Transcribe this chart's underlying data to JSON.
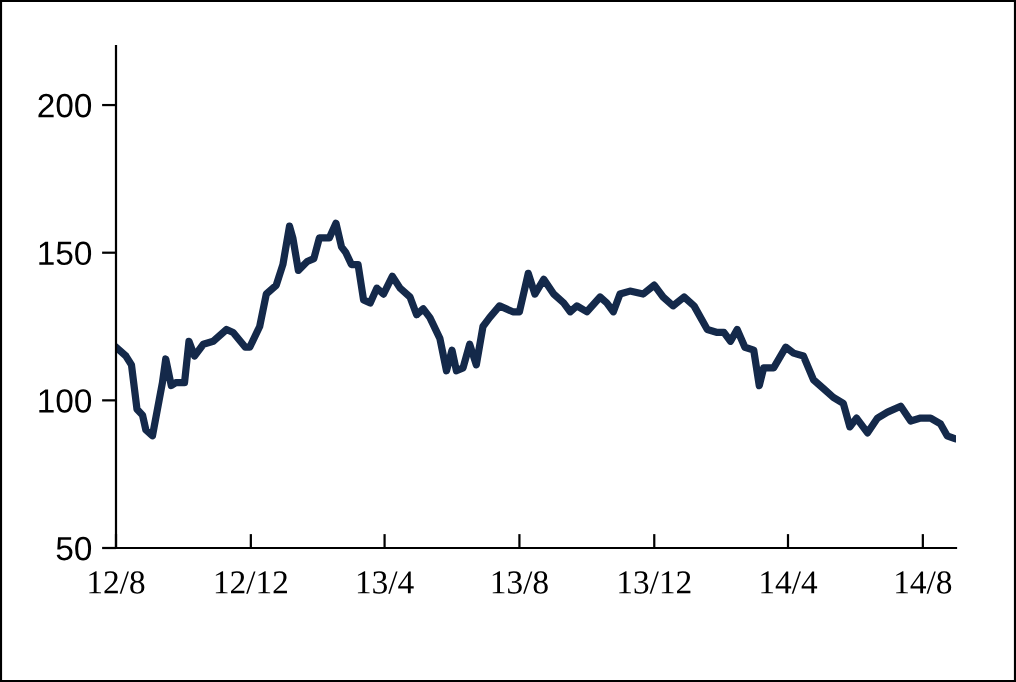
{
  "chart_data": {
    "type": "line",
    "x": [
      "2012-08-01",
      "2012-08-10",
      "2012-08-15",
      "2012-08-20",
      "2012-08-25",
      "2012-08-28",
      "2012-09-03",
      "2012-09-09",
      "2012-09-12",
      "2012-09-15",
      "2012-09-20",
      "2012-09-24",
      "2012-10-02",
      "2012-10-06",
      "2012-10-11",
      "2012-10-19",
      "2012-10-28",
      "2012-11-09",
      "2012-11-15",
      "2012-11-26",
      "2012-11-30",
      "2012-12-09",
      "2012-12-15",
      "2012-12-24",
      "2012-12-30",
      "2013-01-05",
      "2013-01-08",
      "2013-01-13",
      "2013-01-21",
      "2013-01-27",
      "2013-02-01",
      "2013-02-10",
      "2013-02-16",
      "2013-02-21",
      "2013-02-25",
      "2013-03-02",
      "2013-03-08",
      "2013-03-13",
      "2013-03-19",
      "2013-03-25",
      "2013-03-31",
      "2013-04-08",
      "2013-04-15",
      "2013-04-24",
      "2013-04-30",
      "2013-05-06",
      "2013-05-12",
      "2013-05-21",
      "2013-05-27",
      "2013-06-01",
      "2013-06-05",
      "2013-06-11",
      "2013-06-17",
      "2013-06-23",
      "2013-06-29",
      "2013-07-05",
      "2013-07-14",
      "2013-07-26",
      "2013-08-01",
      "2013-08-09",
      "2013-08-15",
      "2013-08-23",
      "2013-09-01",
      "2013-09-10",
      "2013-09-16",
      "2013-09-22",
      "2013-10-01",
      "2013-10-13",
      "2013-10-19",
      "2013-10-25",
      "2013-10-31",
      "2013-11-09",
      "2013-11-21",
      "2013-12-01",
      "2013-12-09",
      "2013-12-18",
      "2013-12-28",
      "2014-01-06",
      "2014-01-18",
      "2014-01-27",
      "2014-02-02",
      "2014-02-08",
      "2014-02-14",
      "2014-02-21",
      "2014-03-01",
      "2014-03-06",
      "2014-03-10",
      "2014-03-19",
      "2014-03-30",
      "2014-04-06",
      "2014-04-15",
      "2014-04-24",
      "2014-05-03",
      "2014-05-12",
      "2014-05-21",
      "2014-05-27",
      "2014-06-02",
      "2014-06-12",
      "2014-06-21",
      "2014-06-30",
      "2014-07-12",
      "2014-07-21",
      "2014-07-30",
      "2014-08-08",
      "2014-08-17",
      "2014-08-23",
      "2014-08-30"
    ],
    "series": [
      {
        "color": "#14294a",
        "values": [
          118,
          115,
          112,
          97,
          95,
          90,
          88,
          100,
          106,
          114,
          105,
          106,
          106,
          120,
          115,
          119,
          120,
          124,
          123,
          118,
          118,
          125,
          136,
          139,
          146,
          159,
          155,
          144,
          147,
          148,
          155,
          155,
          160,
          152,
          150,
          146,
          146,
          134,
          133,
          138,
          136,
          142,
          138,
          135,
          129,
          131,
          128,
          121,
          110,
          117,
          110,
          111,
          119,
          112,
          125,
          128,
          132,
          130,
          130,
          143,
          136,
          141,
          136,
          133,
          130,
          132,
          130,
          135,
          133,
          130,
          136,
          137,
          136,
          139,
          135,
          132,
          135,
          132,
          124,
          123,
          123,
          120,
          124,
          118,
          117,
          105,
          111,
          111,
          118,
          116,
          115,
          107,
          104,
          101,
          99,
          91,
          94,
          89,
          94,
          96,
          98,
          93,
          94,
          94,
          92,
          88,
          87
        ]
      }
    ],
    "xlim": [
      "2012-08-01",
      "2014-08-31"
    ],
    "xticks": [
      {
        "value": "2012-08-01",
        "label": "12/8"
      },
      {
        "value": "2012-12-01",
        "label": "12/12"
      },
      {
        "value": "2013-04-01",
        "label": "13/4"
      },
      {
        "value": "2013-08-01",
        "label": "13/8"
      },
      {
        "value": "2013-12-01",
        "label": "13/12"
      },
      {
        "value": "2014-04-01",
        "label": "14/4"
      },
      {
        "value": "2014-08-01",
        "label": "14/8"
      }
    ],
    "ylim": [
      50,
      220
    ],
    "yticks": [
      50,
      100,
      150,
      200
    ],
    "grid": false,
    "legend": false,
    "line_style": "solid",
    "marker": "none"
  }
}
